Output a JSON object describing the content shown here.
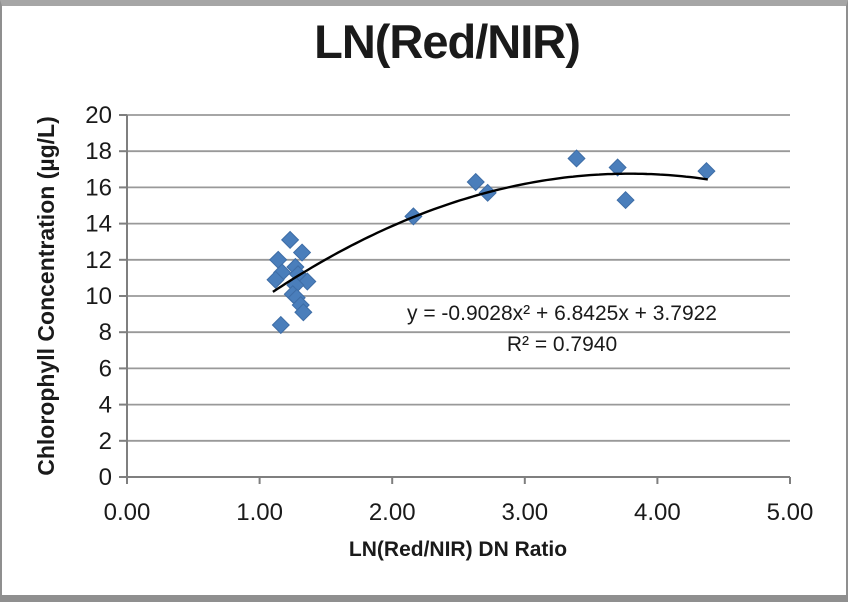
{
  "frame": {
    "top_color": "#a6a6a6",
    "side_color": "#8f8f8f",
    "bottom_color": "#8f8f8f",
    "background": "#ffffff"
  },
  "chart": {
    "title": "LN(Red/NIR)",
    "x_axis_title": "LN(Red/NIR) DN Ratio",
    "y_axis_title": "Chlorophyll Concentration (µg/L)",
    "equation_line1": "y = -0.9028x² + 6.8425x + 3.7922",
    "equation_line2": "R² = 0.7940",
    "colors": {
      "marker": "#4a7ebb",
      "marker_border": "#3e6da6",
      "trendline": "#000000",
      "gridline": "#999999",
      "axis": "#7f7f7f",
      "text": "#1a1a1a"
    }
  },
  "chart_data": {
    "type": "scatter",
    "title": "LN(Red/NIR)",
    "xlabel": "LN(Red/NIR) DN Ratio",
    "ylabel": "Chlorophyll Concentration (µg/L)",
    "xlim": [
      0,
      5
    ],
    "ylim": [
      0,
      20
    ],
    "x_tick_labels": [
      "0.00",
      "1.00",
      "2.00",
      "3.00",
      "4.00",
      "5.00"
    ],
    "y_tick_labels": [
      "0",
      "2",
      "4",
      "6",
      "8",
      "10",
      "12",
      "14",
      "16",
      "18",
      "20"
    ],
    "grid": "horizontal",
    "legend": "none",
    "marker_shape": "diamond",
    "points": [
      [
        1.23,
        13.1
      ],
      [
        1.32,
        12.4
      ],
      [
        1.14,
        12.0
      ],
      [
        1.27,
        11.6
      ],
      [
        1.17,
        11.3
      ],
      [
        1.29,
        11.2
      ],
      [
        1.12,
        10.9
      ],
      [
        1.36,
        10.8
      ],
      [
        1.27,
        10.6
      ],
      [
        1.25,
        10.1
      ],
      [
        1.28,
        9.9
      ],
      [
        1.31,
        9.5
      ],
      [
        1.33,
        9.1
      ],
      [
        1.16,
        8.4
      ],
      [
        2.16,
        14.4
      ],
      [
        2.63,
        16.3
      ],
      [
        2.72,
        15.7
      ],
      [
        3.39,
        17.6
      ],
      [
        3.7,
        17.1
      ],
      [
        3.76,
        15.3
      ],
      [
        4.37,
        16.9
      ]
    ],
    "trendline": {
      "kind": "polynomial",
      "degree": 2,
      "coefficients": {
        "a": -0.9028,
        "b": 6.8425,
        "c": 3.7922
      },
      "equation": "y = -0.9028x² + 6.8425x + 3.7922",
      "r_squared": 0.794,
      "x_start": 1.1,
      "x_end": 4.38
    }
  }
}
